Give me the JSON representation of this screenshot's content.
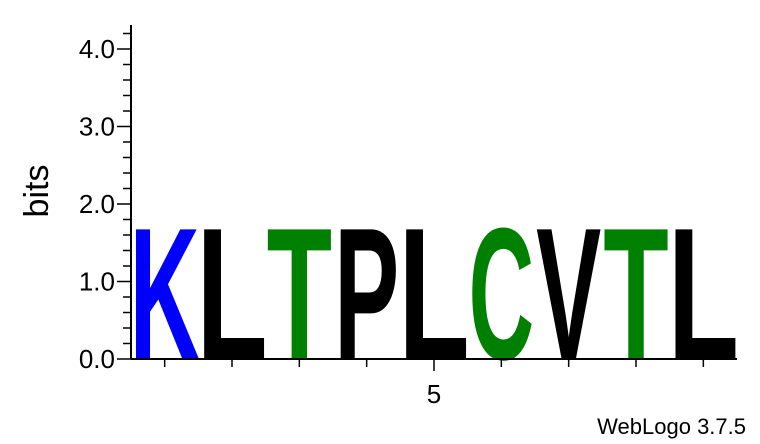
{
  "chart_data": {
    "type": "sequence-logo",
    "ylabel": "bits",
    "ylim": [
      0,
      4.3
    ],
    "yticks": [
      "0.0",
      "1.0",
      "2.0",
      "3.0",
      "4.0"
    ],
    "xticks_labeled": [
      {
        "position": 5,
        "label": "5"
      }
    ],
    "positions": [
      1,
      2,
      3,
      4,
      5,
      6,
      7,
      8,
      9
    ],
    "letters": [
      {
        "position": 1,
        "letter": "K",
        "bits": 1.75,
        "color": "#0000ff"
      },
      {
        "position": 2,
        "letter": "L",
        "bits": 1.75,
        "color": "#000000"
      },
      {
        "position": 3,
        "letter": "T",
        "bits": 1.75,
        "color": "#008000"
      },
      {
        "position": 4,
        "letter": "P",
        "bits": 1.75,
        "color": "#000000"
      },
      {
        "position": 5,
        "letter": "L",
        "bits": 1.75,
        "color": "#000000"
      },
      {
        "position": 6,
        "letter": "C",
        "bits": 1.75,
        "color": "#008000"
      },
      {
        "position": 7,
        "letter": "V",
        "bits": 1.75,
        "color": "#000000"
      },
      {
        "position": 8,
        "letter": "T",
        "bits": 1.75,
        "color": "#008000"
      },
      {
        "position": 9,
        "letter": "L",
        "bits": 1.75,
        "color": "#000000"
      }
    ]
  },
  "credit": "WebLogo 3.7.5"
}
